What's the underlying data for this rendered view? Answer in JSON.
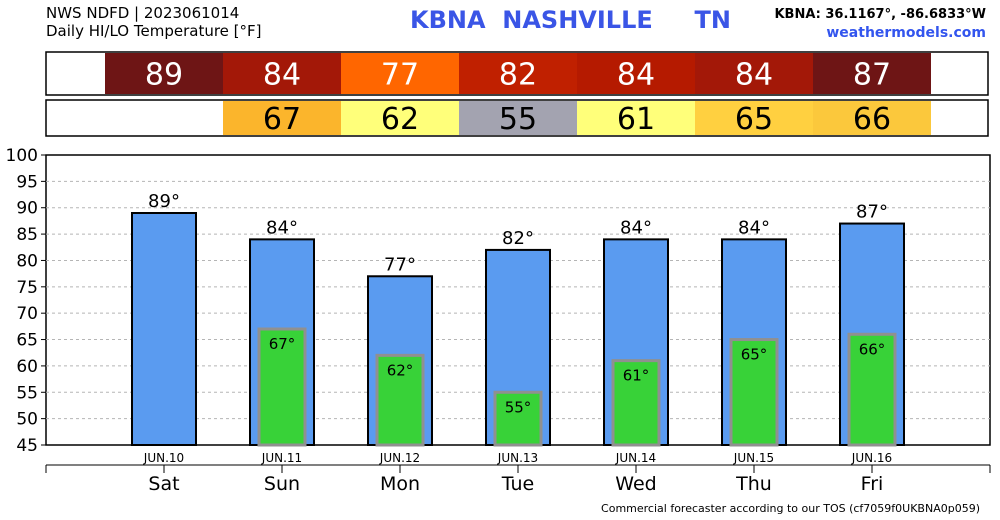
{
  "header": {
    "line1": "NWS NDFD | 2023061014",
    "line2": "Daily HI/LO Temperature [°F]",
    "station": "KBNA  NASHVILLE     TN",
    "coords": "KBNA: 36.1167°, -86.6833°W",
    "site": "weathermodels.com"
  },
  "footer": "Commercial forecaster according to our TOS (cf7059f0UKBNA0p059)",
  "chart_data": {
    "type": "bar",
    "days": [
      "Sat",
      "Sun",
      "Mon",
      "Tue",
      "Wed",
      "Thu",
      "Fri"
    ],
    "dates": [
      "JUN.10",
      "JUN.11",
      "JUN.12",
      "JUN.13",
      "JUN.14",
      "JUN.15",
      "JUN.16"
    ],
    "series": [
      {
        "values": [
          89,
          84,
          77,
          82,
          84,
          84,
          87
        ],
        "color": "#5a9bf0"
      },
      {
        "values": [
          null,
          67,
          62,
          55,
          61,
          65,
          66
        ],
        "color": "#38d238"
      }
    ],
    "high_label_suffix": "°",
    "low_label_suffix": "°",
    "high_strip_colors": [
      "#6e1515",
      "#a31808",
      "#ff6600",
      "#c02000",
      "#b51a00",
      "#a31808",
      "#6e1515"
    ],
    "low_strip_colors": [
      null,
      "#fbb52c",
      "#ffff7a",
      "#a3a3b0",
      "#ffff7a",
      "#ffd040",
      "#fbc83c"
    ],
    "ylim": [
      45,
      100
    ],
    "yticks": [
      45,
      50,
      55,
      60,
      65,
      70,
      75,
      80,
      85,
      90,
      95,
      100
    ],
    "grid": true
  }
}
